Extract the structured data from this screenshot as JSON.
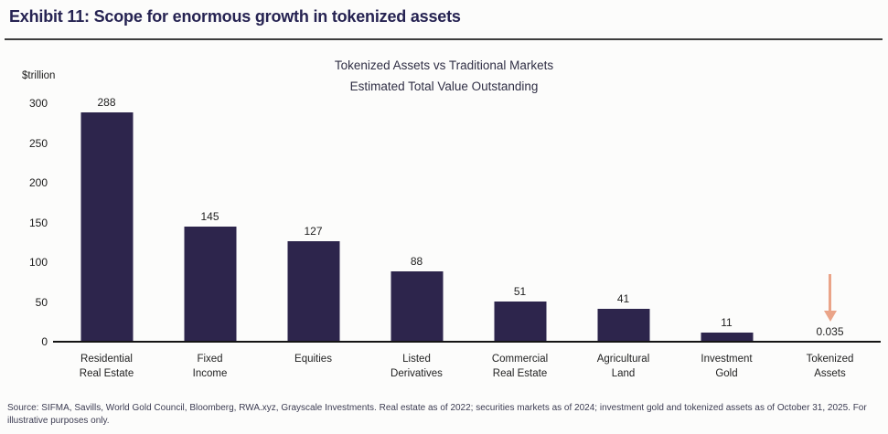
{
  "exhibit": {
    "title": "Exhibit 11: Scope for enormous growth in tokenized assets",
    "source_note": "Source: SIFMA, Savills, World Gold Council, Bloomberg, RWA.xyz, Grayscale Investments. Real estate as of 2022; securities markets as of 2024; investment gold and tokenized assets as of October 31, 2025. For illustrative purposes only."
  },
  "chart_data": {
    "type": "bar",
    "title": "Tokenized Assets vs Traditional Markets",
    "subtitle": "Estimated Total Value Outstanding",
    "unit_label": "$trillion",
    "categories": [
      "Residential\nReal Estate",
      "Fixed\nIncome",
      "Equities",
      "Listed\nDerivatives",
      "Commercial\nReal Estate",
      "Agricultural\nLand",
      "Investment\nGold",
      "Tokenized\nAssets"
    ],
    "values": [
      288,
      145,
      127,
      88,
      51,
      41,
      11,
      0.035
    ],
    "value_labels": [
      "288",
      "145",
      "127",
      "88",
      "51",
      "41",
      "11",
      "0.035"
    ],
    "ylabel": "",
    "xlabel": "",
    "ylim": [
      0,
      300
    ],
    "yticks": [
      300,
      250,
      200,
      150,
      100,
      50,
      0
    ],
    "grid": false,
    "legend_position": "none",
    "bar_color": "#2d254c",
    "axis_text_color": "#1c1c1c",
    "annotation": {
      "type": "arrow-down",
      "target_index": 7,
      "color": "#eaa488"
    }
  }
}
